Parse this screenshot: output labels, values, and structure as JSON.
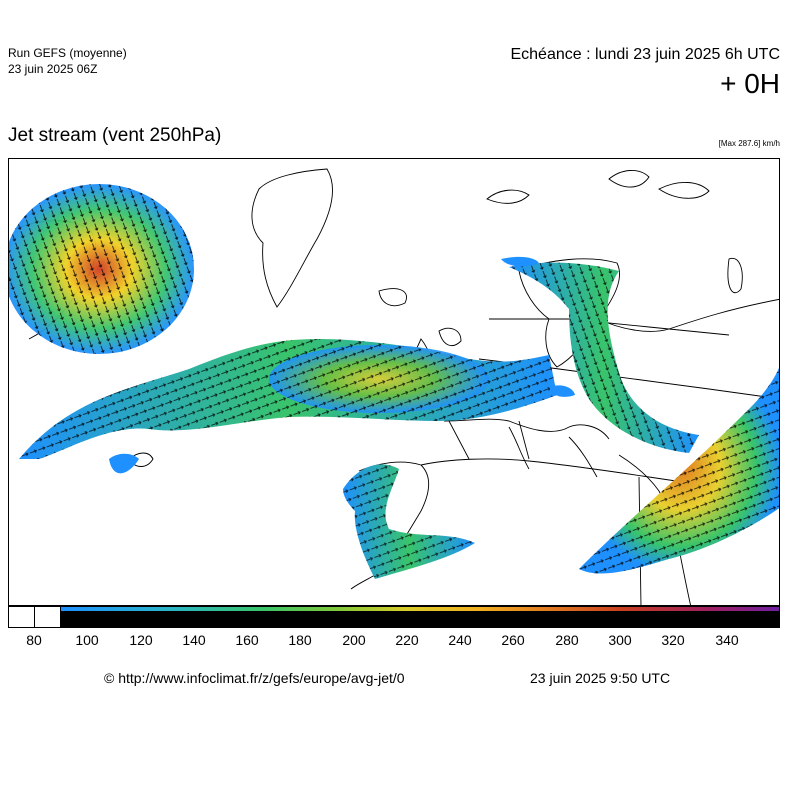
{
  "header": {
    "run_title": "Run GEFS (moyenne)",
    "run_date": "23 juin 2025 06Z",
    "echeance": "Echéance : lundi 23 juin 2025 6h UTC",
    "offset": "+ 0H"
  },
  "map": {
    "title": "Jet stream (vent 250hPa)",
    "max_label": "[Max 287.6] km/h"
  },
  "colorbar": {
    "ticks": [
      "80",
      "100",
      "120",
      "140",
      "160",
      "180",
      "200",
      "220",
      "240",
      "260",
      "280",
      "300",
      "320",
      "340"
    ]
  },
  "footer": {
    "url": "© http://www.infoclimat.fr/z/gefs/europe/avg-jet/0",
    "timestamp": "23 juin 2025  9:50 UTC"
  },
  "colors": {
    "low_speed": "#1e90ff",
    "mid_speed": "#39c46b",
    "high_speed": "#f0d020",
    "max_speed": "#d02020"
  }
}
